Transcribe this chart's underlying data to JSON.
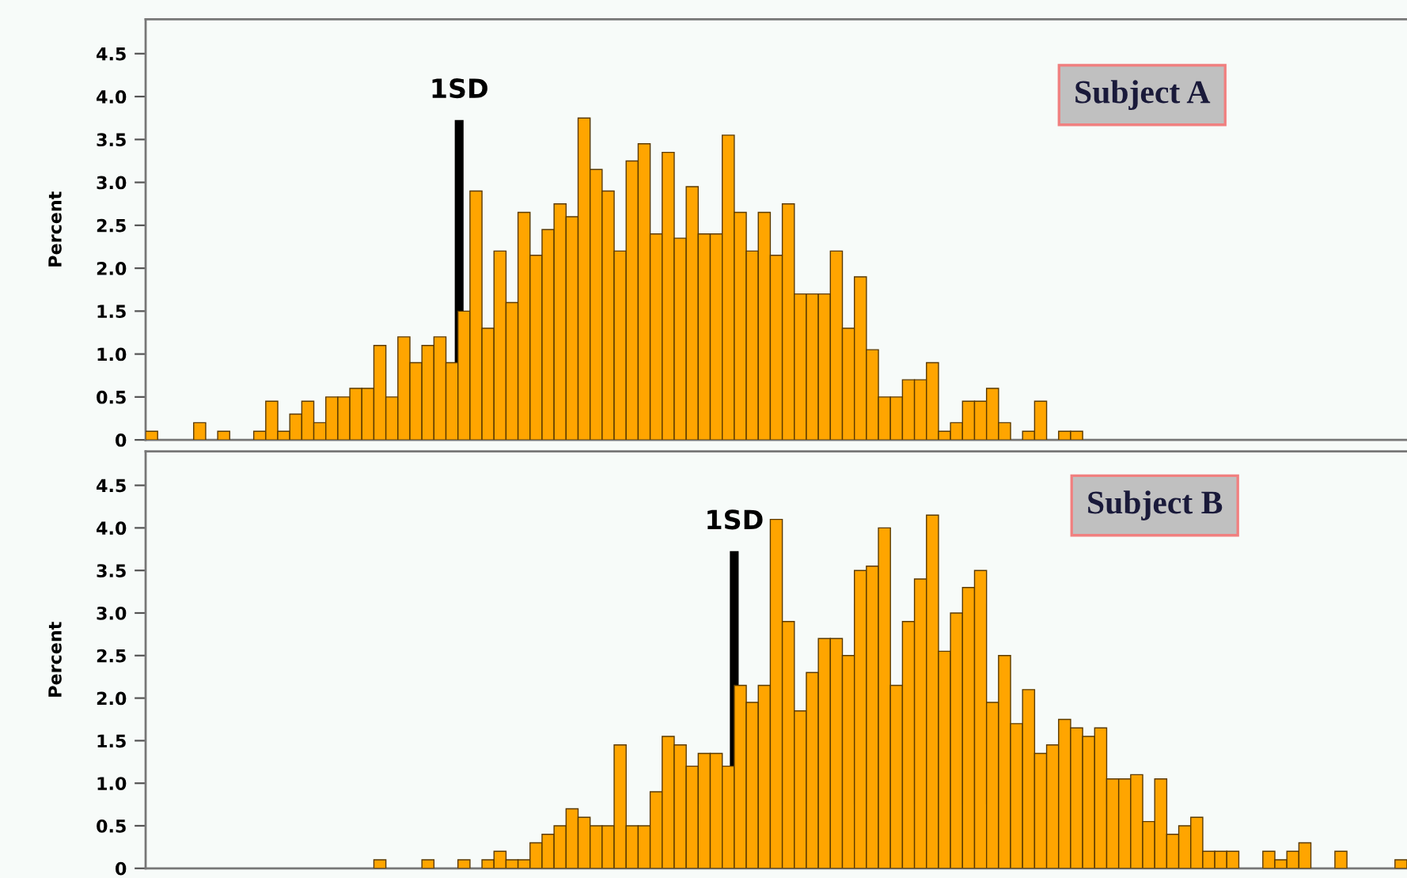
{
  "chart_data": [
    {
      "type": "bar",
      "ylabel": "Percent",
      "color": "#ffa500",
      "categories": [
        null,
        null,
        null,
        null,
        null,
        null,
        null,
        null,
        null,
        null,
        null,
        null,
        null,
        null,
        null,
        null,
        null,
        null,
        null,
        null,
        null,
        null,
        null,
        null,
        null,
        null,
        null,
        null,
        null,
        null,
        null,
        null,
        null,
        null,
        null,
        null,
        null,
        null,
        null,
        null,
        null,
        null,
        null,
        null,
        null,
        null,
        null,
        null,
        null,
        null,
        null,
        null,
        null,
        null,
        null,
        null,
        null,
        null,
        null,
        null,
        null,
        null,
        null,
        null,
        null,
        null,
        null,
        null,
        null,
        null,
        null,
        null,
        null,
        null,
        null,
        null,
        null,
        null,
        null,
        null,
        null,
        null,
        null,
        null,
        null,
        null,
        null,
        null,
        null,
        null,
        null,
        null,
        null,
        null,
        null,
        null,
        null,
        null,
        null,
        null,
        null,
        null,
        null,
        null,
        null
      ],
      "values": [
        0.1,
        0,
        0,
        0,
        0.2,
        0,
        0.1,
        0,
        0,
        0.1,
        0.45,
        0.1,
        0.3,
        0.45,
        0.2,
        0.5,
        0.5,
        0.6,
        0.6,
        1.1,
        0.5,
        1.2,
        0.9,
        1.1,
        1.2,
        0.9,
        1.5,
        2.9,
        1.3,
        2.2,
        1.6,
        2.65,
        2.15,
        2.45,
        2.75,
        2.6,
        3.75,
        3.15,
        2.9,
        2.2,
        3.25,
        3.45,
        2.4,
        3.35,
        2.35,
        2.95,
        2.4,
        2.4,
        3.55,
        2.65,
        2.2,
        2.65,
        2.15,
        2.75,
        1.7,
        1.7,
        1.7,
        2.2,
        1.3,
        1.9,
        1.05,
        0.5,
        0.5,
        0.7,
        0.7,
        0.9,
        0.1,
        0.2,
        0.45,
        0.45,
        0.6,
        0.2,
        0,
        0.1,
        0.45,
        0,
        0.1,
        0.1,
        0,
        0,
        0,
        0,
        0,
        0,
        0,
        0,
        0,
        0,
        0,
        0,
        0,
        0,
        0,
        0,
        0,
        0,
        0,
        0,
        0,
        0,
        0,
        0,
        0,
        0,
        0
      ],
      "ylim": [
        0,
        4.9
      ],
      "yticks": [
        0,
        0.5,
        {
          "value": 1,
          "label": "1.0"
        },
        1.5,
        {
          "value": 2,
          "label": "2.0"
        },
        2.5,
        {
          "value": 3,
          "label": "3.0"
        },
        3.5,
        {
          "value": 4,
          "label": "4.0"
        },
        4.5
      ],
      "annotations": [
        "Subject A",
        "1SD"
      ],
      "tick_labels": "y",
      "grid": false,
      "legend": false
    },
    {
      "type": "bar",
      "ylabel": "Percent",
      "color": "#ffa500",
      "categories": [
        null,
        null,
        null,
        null,
        null,
        null,
        null,
        null,
        null,
        null,
        null,
        null,
        null,
        null,
        null,
        null,
        null,
        null,
        null,
        null,
        null,
        null,
        null,
        null,
        null,
        null,
        null,
        null,
        null,
        null,
        null,
        null,
        null,
        null,
        null,
        null,
        null,
        null,
        null,
        null,
        null,
        null,
        null,
        null,
        null,
        null,
        null,
        null,
        null,
        null,
        null,
        null,
        null,
        null,
        null,
        null,
        null,
        null,
        null,
        null,
        null,
        null,
        null,
        null,
        null,
        null,
        null,
        null,
        null,
        null,
        null,
        null,
        null,
        null,
        null,
        null,
        null,
        null,
        null,
        null,
        null,
        null,
        null,
        null,
        null,
        null,
        null,
        null,
        null,
        null,
        null,
        null,
        null,
        null,
        null,
        null,
        null,
        null,
        null,
        null,
        null,
        null,
        null,
        null,
        null
      ],
      "values": [
        0,
        0,
        0,
        0,
        0,
        0,
        0,
        0,
        0,
        0,
        0,
        0,
        0,
        0,
        0,
        0,
        0,
        0,
        0,
        0.1,
        0,
        0,
        0,
        0.1,
        0,
        0,
        0.1,
        0,
        0.1,
        0.2,
        0.1,
        0.1,
        0.3,
        0.4,
        0.5,
        0.7,
        0.6,
        0.5,
        0.5,
        1.45,
        0.5,
        0.5,
        0.9,
        1.55,
        1.45,
        1.2,
        1.35,
        1.35,
        1.2,
        2.15,
        1.95,
        2.15,
        4.1,
        2.9,
        1.85,
        2.3,
        2.7,
        2.7,
        2.5,
        3.5,
        3.55,
        4.0,
        2.15,
        2.9,
        3.4,
        4.15,
        2.55,
        3.0,
        3.3,
        3.5,
        1.95,
        2.5,
        1.7,
        2.1,
        1.35,
        1.45,
        1.75,
        1.65,
        1.55,
        1.65,
        1.05,
        1.05,
        1.1,
        0.55,
        1.05,
        0.4,
        0.5,
        0.6,
        0.2,
        0.2,
        0.2,
        0,
        0,
        0.2,
        0.1,
        0.2,
        0.3,
        0,
        0,
        0.2,
        0,
        0,
        0,
        0,
        0.1
      ],
      "ylim": [
        0,
        4.9
      ],
      "yticks": [
        0,
        0.5,
        {
          "value": 1,
          "label": "1.0"
        },
        1.5,
        {
          "value": 2,
          "label": "2.0"
        },
        2.5,
        {
          "value": 3,
          "label": "3.0"
        },
        3.5,
        {
          "value": 4,
          "label": "4.0"
        },
        4.5
      ],
      "annotations": [
        "Subject B",
        "1SD"
      ],
      "tick_labels": "y",
      "grid": false,
      "legend": false
    }
  ]
}
